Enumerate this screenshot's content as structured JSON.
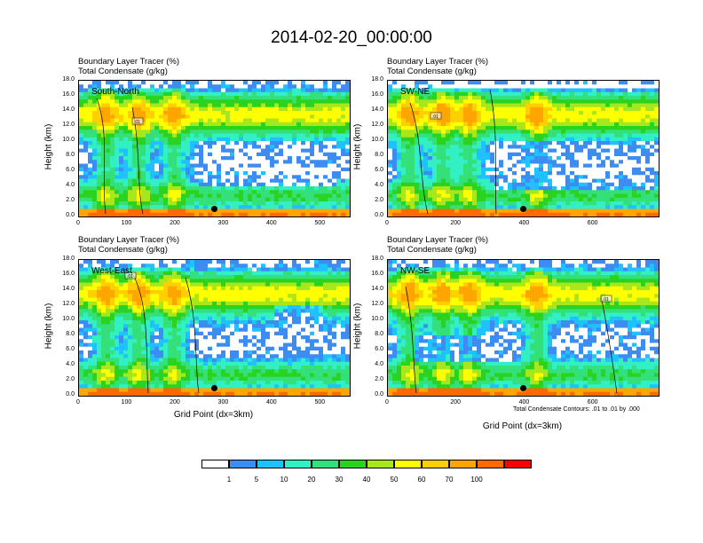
{
  "title": "2014-02-20_00:00:00",
  "panel_subtitle_1": "Boundary Layer Tracer   (%)",
  "panel_subtitle_2": "Total Condensate   (g/kg)",
  "y_axis_label": "Height (km)",
  "x_axis_label": "Grid Point (dx=3km)",
  "contour_note": "Total Condensate Contours: .01 to .01 by .000",
  "contour_label": ".01",
  "colors": {
    "levels": [
      "#ffffff",
      "#3d8cf2",
      "#1fc1ff",
      "#33f0c4",
      "#33e07a",
      "#2bd321",
      "#a8e61e",
      "#ffff00",
      "#ffd000",
      "#ffa500",
      "#ff6a00",
      "#ff0000"
    ],
    "contour": "#000000",
    "marker": "#000000"
  },
  "chart_data": [
    {
      "type": "heatmap",
      "name": "South-North",
      "title": "South-North",
      "x_range": [
        0,
        560
      ],
      "x_ticks": [
        "0",
        "100",
        "200",
        "300",
        "400",
        "500"
      ],
      "y_range": [
        0,
        18
      ],
      "y_ticks": [
        "0.0",
        "2.0",
        "4.0",
        "6.0",
        "8.0",
        "10.0",
        "12.0",
        "14.0",
        "16.0",
        "18.0"
      ],
      "marker": {
        "x": 280,
        "y": 1.0
      }
    },
    {
      "type": "heatmap",
      "name": "SW-NE",
      "title": "SW-NE",
      "x_range": [
        0,
        790
      ],
      "x_ticks": [
        "0",
        "200",
        "400",
        "600"
      ],
      "y_range": [
        0,
        18
      ],
      "y_ticks": [
        "0.0",
        "2.0",
        "4.0",
        "6.0",
        "8.0",
        "10.0",
        "12.0",
        "14.0",
        "16.0",
        "18.0"
      ],
      "marker": {
        "x": 395,
        "y": 1.0
      }
    },
    {
      "type": "heatmap",
      "name": "West-East",
      "title": "West-East",
      "x_range": [
        0,
        560
      ],
      "x_ticks": [
        "0",
        "100",
        "200",
        "300",
        "400",
        "500"
      ],
      "y_range": [
        0,
        18
      ],
      "y_ticks": [
        "0.0",
        "2.0",
        "4.0",
        "6.0",
        "8.0",
        "10.0",
        "12.0",
        "14.0",
        "16.0",
        "18.0"
      ],
      "marker": {
        "x": 280,
        "y": 1.0
      }
    },
    {
      "type": "heatmap",
      "name": "NW-SE",
      "title": "NW-SE",
      "x_range": [
        0,
        790
      ],
      "x_ticks": [
        "0",
        "200",
        "400",
        "600"
      ],
      "y_range": [
        0,
        18
      ],
      "y_ticks": [
        "0.0",
        "2.0",
        "4.0",
        "6.0",
        "8.0",
        "10.0",
        "12.0",
        "14.0",
        "16.0",
        "18.0"
      ],
      "marker": {
        "x": 395,
        "y": 1.0
      }
    }
  ],
  "colorbar": {
    "labels": [
      "1",
      "5",
      "10",
      "20",
      "30",
      "40",
      "50",
      "60",
      "70",
      "100"
    ]
  }
}
